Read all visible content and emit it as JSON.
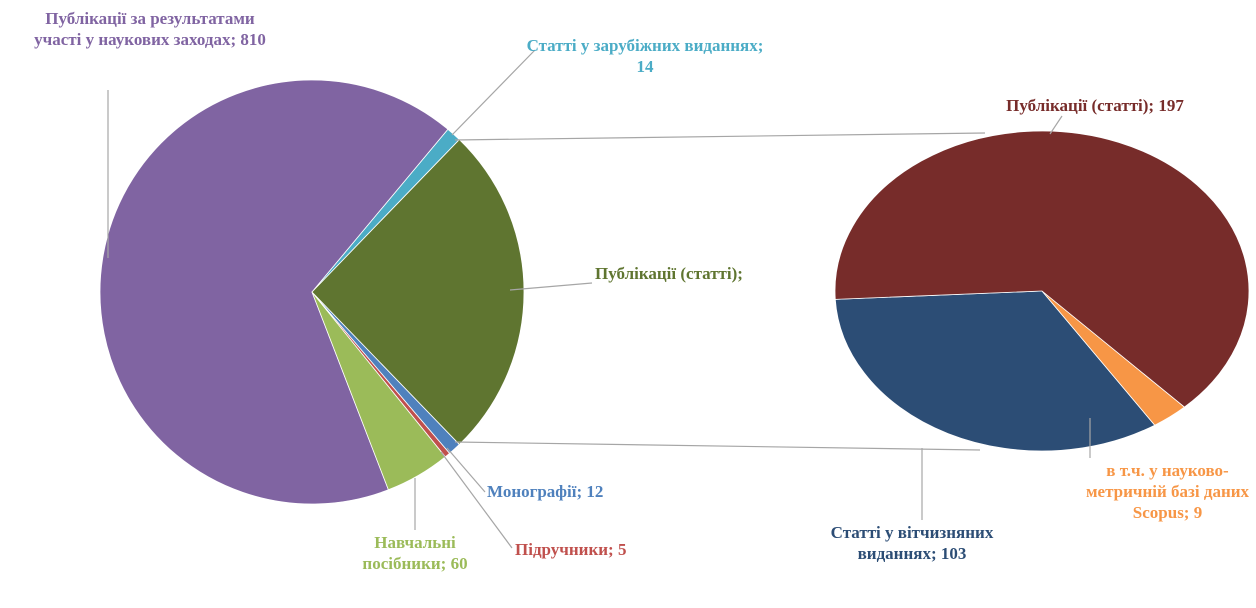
{
  "chart_data": [
    {
      "type": "pie",
      "values": [
        309,
        12,
        5,
        60,
        810,
        14
      ],
      "value_labels": [
        "Публікації (статті);",
        "Монографії; 12",
        "Підручники; 5",
        "Навчальні посібники; 60",
        "Публікації за результатами участі у наукових заходах; 810",
        "Статті у зарубіжних виданнях; 14"
      ],
      "colors": [
        "#5f7530",
        "#4f81bd",
        "#c0504d",
        "#9bbb59",
        "#8064a2",
        "#4bacc6"
      ]
    },
    {
      "type": "pie",
      "values": [
        197,
        9,
        103
      ],
      "value_labels": [
        "Публікації (статті); 197",
        "в т.ч. у науково-метричній базі даних Scopus; 9",
        "Статті у вітчизняних виданнях; 103"
      ],
      "colors": [
        "#772c2a",
        "#f79646",
        "#2c4d75"
      ]
    }
  ]
}
